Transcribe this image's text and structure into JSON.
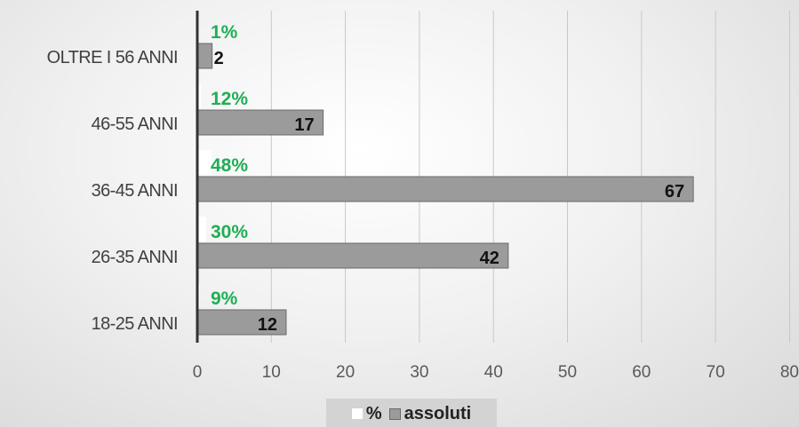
{
  "chart_data": {
    "type": "bar",
    "orientation": "horizontal",
    "categories": [
      "OLTRE I 56 ANNI",
      "46-55 ANNI",
      "36-45 ANNI",
      "26-35 ANNI",
      "18-25 ANNI"
    ],
    "series": [
      {
        "name": "%",
        "values": [
          1,
          12,
          48,
          30,
          9
        ],
        "labels": [
          "1%",
          "12%",
          "48%",
          "30%",
          "9%"
        ],
        "color": "#ffffff",
        "label_color": "#1fae55"
      },
      {
        "name": "assoluti",
        "values": [
          2,
          17,
          67,
          42,
          12
        ],
        "labels": [
          "2",
          "17",
          "67",
          "42",
          "12"
        ],
        "color": "#9b9b9b"
      }
    ],
    "xticks": [
      "0",
      "10",
      "20",
      "30",
      "40",
      "50",
      "60",
      "70",
      "80"
    ],
    "xlim": [
      0,
      80
    ],
    "grid": true,
    "legend_position": "bottom"
  },
  "legend": {
    "pct_label": "%",
    "abs_label": "assoluti"
  }
}
